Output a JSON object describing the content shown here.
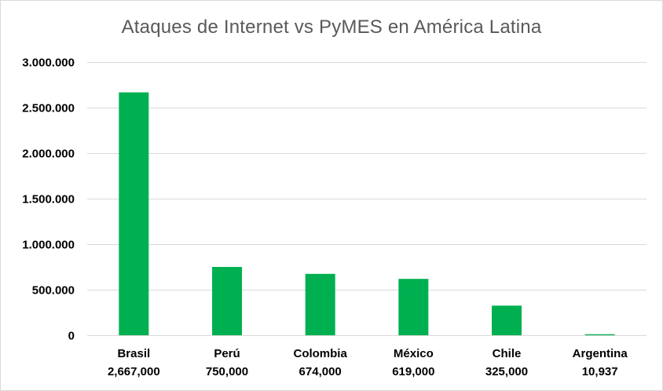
{
  "chart_data": {
    "type": "bar",
    "title": "Ataques de Internet vs PyMES en América Latina",
    "xlabel": "",
    "ylabel": "",
    "categories": [
      "Brasil",
      "Perú",
      "Colombia",
      "México",
      "Chile",
      "Argentina"
    ],
    "category_values_text": [
      "2,667,000",
      "750,000",
      "674,000",
      "619,000",
      "325,000",
      "10,937"
    ],
    "values": [
      2667000,
      750000,
      674000,
      619000,
      325000,
      10937
    ],
    "ylim": [
      0,
      3000000
    ],
    "y_ticks": [
      0,
      500000,
      1000000,
      1500000,
      2000000,
      2500000,
      3000000
    ],
    "y_tick_labels": [
      "0",
      "500.000",
      "1.000.000",
      "1.500.000",
      "2.000.000",
      "2.500.000",
      "3.000.000"
    ],
    "bar_color": "#00b050",
    "grid": true,
    "legend": "none"
  }
}
